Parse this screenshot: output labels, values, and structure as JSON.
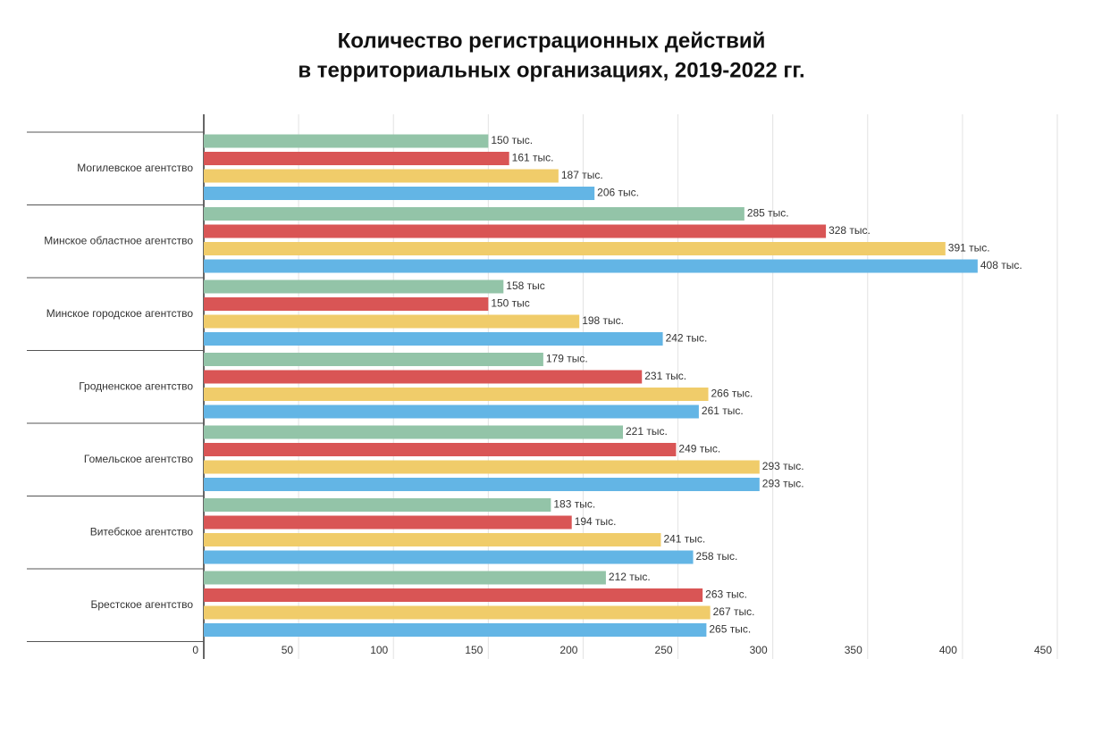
{
  "chart_data": {
    "type": "bar",
    "orientation": "horizontal",
    "title": [
      "Количество регистрационных действий",
      "в территориальных организациях, 2019-2022 гг."
    ],
    "categories": [
      "Могилевское агентство",
      "Минское областное агентство",
      "Минское городское агентство",
      "Гродненское агентство",
      "Гомельское агентство",
      "Витебское агентство",
      "Брестское агентство"
    ],
    "series": [
      {
        "color": "#93c4a8",
        "values": [
          150,
          285,
          158,
          179,
          221,
          183,
          212
        ],
        "value_labels": [
          "150 тыс.",
          "285 тыс.",
          "158 тыс",
          "179 тыс.",
          "221 тыс.",
          "183 тыс.",
          "212 тыс."
        ]
      },
      {
        "color": "#d95555",
        "values": [
          161,
          328,
          150,
          231,
          249,
          194,
          263
        ],
        "value_labels": [
          "161 тыс.",
          "328 тыс.",
          "150 тыс",
          "231 тыс.",
          "249 тыс.",
          "194 тыс.",
          "263 тыс."
        ]
      },
      {
        "color": "#f0cc6a",
        "values": [
          187,
          391,
          198,
          266,
          293,
          241,
          267
        ],
        "value_labels": [
          "187 тыс.",
          "391 тыс.",
          "198 тыс.",
          "266 тыс.",
          "293 тыс.",
          "241 тыс.",
          "267 тыс."
        ]
      },
      {
        "color": "#63b5e5",
        "values": [
          206,
          408,
          242,
          261,
          293,
          258,
          265
        ],
        "value_labels": [
          "206 тыс.",
          "408 тыс.",
          "242 тыс.",
          "261 тыс.",
          "293 тыс.",
          "258 тыс.",
          "265 тыс."
        ]
      }
    ],
    "xlim": [
      0,
      450
    ],
    "xticks": [
      0,
      50,
      100,
      150,
      200,
      250,
      300,
      350,
      400,
      450
    ],
    "grid": true
  }
}
